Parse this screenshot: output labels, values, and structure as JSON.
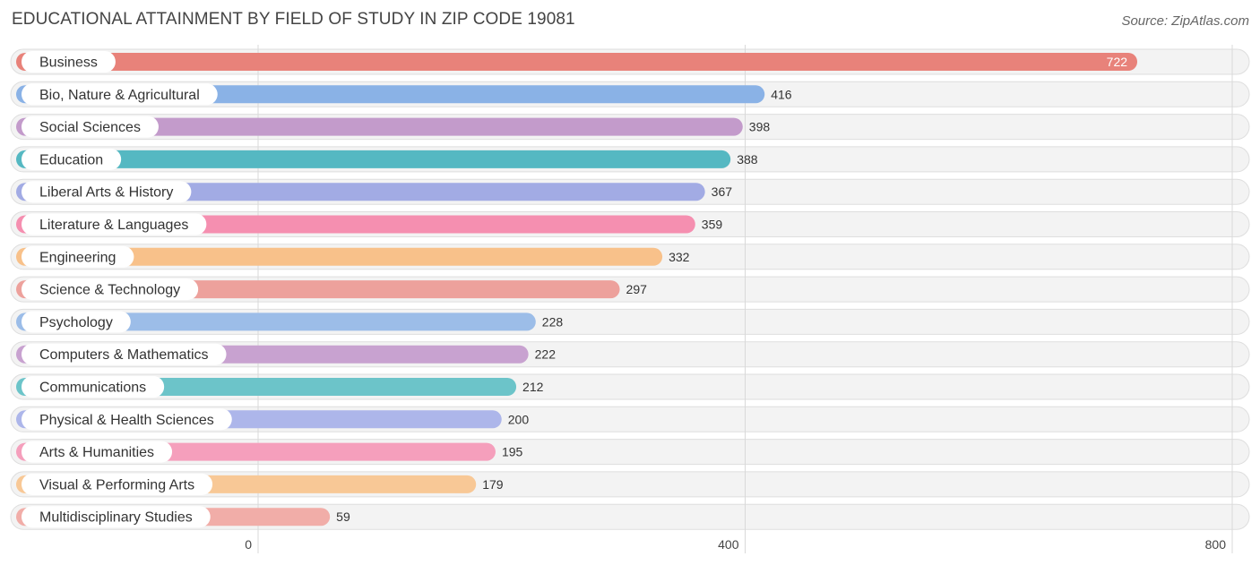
{
  "header": {
    "title": "EDUCATIONAL ATTAINMENT BY FIELD OF STUDY IN ZIP CODE 19081",
    "source": "Source: ZipAtlas.com"
  },
  "chart_data": {
    "type": "bar",
    "orientation": "horizontal",
    "title": "EDUCATIONAL ATTAINMENT BY FIELD OF STUDY IN ZIP CODE 19081",
    "xlabel": "",
    "ylabel": "",
    "xlim": [
      0,
      800
    ],
    "ticks": [
      0,
      400,
      800
    ],
    "grid": true,
    "categories": [
      "Business",
      "Bio, Nature & Agricultural",
      "Social Sciences",
      "Education",
      "Liberal Arts & History",
      "Literature & Languages",
      "Engineering",
      "Science & Technology",
      "Psychology",
      "Computers & Mathematics",
      "Communications",
      "Physical & Health Sciences",
      "Arts & Humanities",
      "Visual & Performing Arts",
      "Multidisciplinary Studies"
    ],
    "values": [
      722,
      416,
      398,
      388,
      367,
      359,
      332,
      297,
      228,
      222,
      212,
      200,
      195,
      179,
      59
    ],
    "colors": [
      "#e8827a",
      "#8ab2e6",
      "#c39bcb",
      "#55b8c2",
      "#a2abe4",
      "#f58fb0",
      "#f8c18a",
      "#eda19c",
      "#9cbde8",
      "#c8a2d0",
      "#6cc4c9",
      "#adb6ea",
      "#f59fbc",
      "#f8c896",
      "#f1ada8"
    ]
  }
}
